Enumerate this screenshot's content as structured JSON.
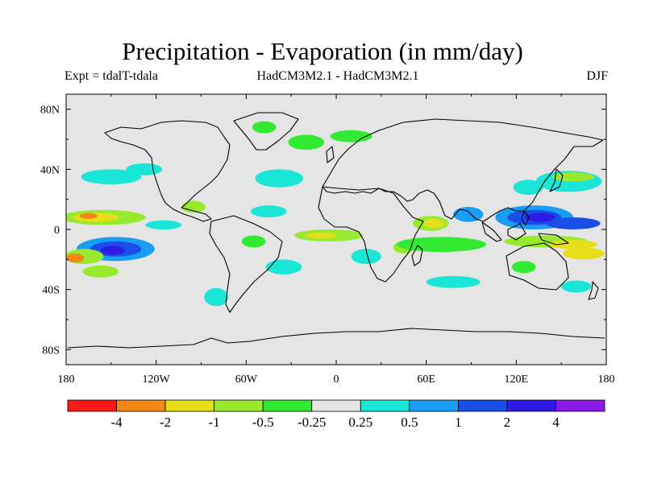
{
  "chart_data": {
    "type": "heatmap",
    "title": "Precipitation - Evaporation (in mm/day)",
    "subtitle_left": "Expt = tdalT-tdala",
    "subtitle_center": "HadCM3M2.1 - HadCM3M2.1",
    "subtitle_right": "DJF",
    "x_range": [
      -180,
      180
    ],
    "y_range": [
      -90,
      90
    ],
    "x_ticks": [
      {
        "value": -180,
        "label": "180"
      },
      {
        "value": -120,
        "label": "120W"
      },
      {
        "value": -60,
        "label": "60W"
      },
      {
        "value": 0,
        "label": "0"
      },
      {
        "value": 60,
        "label": "60E"
      },
      {
        "value": 120,
        "label": "120E"
      },
      {
        "value": 180,
        "label": "180"
      }
    ],
    "y_ticks": [
      {
        "value": 80,
        "label": "80N"
      },
      {
        "value": 40,
        "label": "40N"
      },
      {
        "value": 0,
        "label": "0"
      },
      {
        "value": -40,
        "label": "40S"
      },
      {
        "value": -80,
        "label": "80S"
      }
    ],
    "background_color": "#e5e5e5",
    "colorbar": {
      "colors": [
        "#ff1a1a",
        "#f58717",
        "#e6de1a",
        "#99ea2e",
        "#33ea33",
        "#e5e5e5",
        "#1ae6d8",
        "#1a9ef5",
        "#1a4ee8",
        "#2f1ae6",
        "#8a1ae8"
      ],
      "labels": [
        "-4",
        "-2",
        "-1",
        "-0.5",
        "-0.25",
        "0.25",
        "0.5",
        "1",
        "2",
        "4"
      ]
    },
    "field_regions": [
      {
        "name": "central-pacific-dry-band",
        "lon": -155,
        "lat": 8,
        "rlon": 28,
        "rlat": 5,
        "level": 3
      },
      {
        "name": "central-pacific-dry-core",
        "lon": -160,
        "lat": 8,
        "rlon": 15,
        "rlat": 3,
        "level": 2
      },
      {
        "name": "central-pacific-dry-red",
        "lon": -165,
        "lat": 9,
        "rlon": 6,
        "rlat": 2,
        "level": 1
      },
      {
        "name": "north-pacific-wet",
        "lon": -150,
        "lat": 35,
        "rlon": 20,
        "rlat": 5,
        "level": 6
      },
      {
        "name": "north-pacific-wet-2",
        "lon": -128,
        "lat": 40,
        "rlon": 12,
        "rlat": 4,
        "level": 6
      },
      {
        "name": "south-pacific-wet-broad",
        "lon": -147,
        "lat": -13,
        "rlon": 26,
        "rlat": 8,
        "level": 7
      },
      {
        "name": "south-pacific-wet-mid",
        "lon": -147,
        "lat": -13,
        "rlon": 17,
        "rlat": 5,
        "level": 8
      },
      {
        "name": "south-pacific-wet-core",
        "lon": -149,
        "lat": -14,
        "rlon": 8,
        "rlat": 3,
        "level": 9
      },
      {
        "name": "sw-pacific-dry",
        "lon": -168,
        "lat": -18,
        "rlon": 13,
        "rlat": 5,
        "level": 3
      },
      {
        "name": "sw-pacific-dry-core",
        "lon": -174,
        "lat": -19,
        "rlon": 6,
        "rlat": 3,
        "level": 1
      },
      {
        "name": "se-pacific-dry",
        "lon": -157,
        "lat": -28,
        "rlon": 12,
        "rlat": 4,
        "level": 3
      },
      {
        "name": "east-pacific-wet",
        "lon": -115,
        "lat": 3,
        "rlon": 12,
        "rlat": 3,
        "level": 6
      },
      {
        "name": "mexico-dry",
        "lon": -95,
        "lat": 15,
        "rlon": 8,
        "rlat": 4,
        "level": 3
      },
      {
        "name": "amazon-dry",
        "lon": -55,
        "lat": -8,
        "rlon": 8,
        "rlat": 4,
        "level": 4
      },
      {
        "name": "south-atlantic-wet",
        "lon": -35,
        "lat": -25,
        "rlon": 12,
        "rlat": 5,
        "level": 6
      },
      {
        "name": "north-atlantic-wet",
        "lon": -38,
        "lat": 34,
        "rlon": 16,
        "rlat": 6,
        "level": 6
      },
      {
        "name": "north-atlantic-wet-2",
        "lon": -45,
        "lat": 12,
        "rlon": 12,
        "rlat": 4,
        "level": 6
      },
      {
        "name": "north-atlantic-dry",
        "lon": -20,
        "lat": 58,
        "rlon": 12,
        "rlat": 5,
        "level": 4
      },
      {
        "name": "nordic-dry",
        "lon": 10,
        "lat": 62,
        "rlon": 14,
        "rlat": 4,
        "level": 4
      },
      {
        "name": "greenland-dry",
        "lon": -48,
        "lat": 68,
        "rlon": 8,
        "rlat": 4,
        "level": 4
      },
      {
        "name": "atlantic-itcz-dry",
        "lon": -5,
        "lat": -4,
        "rlon": 23,
        "rlat": 4,
        "level": 3
      },
      {
        "name": "atlantic-itcz-dry-core",
        "lon": -10,
        "lat": -4,
        "rlon": 10,
        "rlat": 2,
        "level": 2
      },
      {
        "name": "africa-wet",
        "lon": 20,
        "lat": -18,
        "rlon": 10,
        "rlat": 5,
        "level": 6
      },
      {
        "name": "madagascar-dry",
        "lon": 45,
        "lat": -12,
        "rlon": 7,
        "rlat": 4,
        "level": 3
      },
      {
        "name": "indian-ocean-dry-band",
        "lon": 70,
        "lat": -10,
        "rlon": 30,
        "rlat": 5,
        "level": 4
      },
      {
        "name": "arabian-sea-dry",
        "lon": 63,
        "lat": 4,
        "rlon": 12,
        "rlat": 5,
        "level": 3
      },
      {
        "name": "arabian-sea-dry-core",
        "lon": 65,
        "lat": 4,
        "rlon": 7,
        "rlat": 3,
        "level": 2
      },
      {
        "name": "bay-of-bengal-wet",
        "lon": 88,
        "lat": 10,
        "rlon": 10,
        "rlat": 5,
        "level": 7
      },
      {
        "name": "warm-pool-wet-broad",
        "lon": 132,
        "lat": 8,
        "rlon": 26,
        "rlat": 8,
        "level": 7
      },
      {
        "name": "warm-pool-wet-mid",
        "lon": 132,
        "lat": 8,
        "rlon": 18,
        "rlat": 5,
        "level": 8
      },
      {
        "name": "warm-pool-wet-core",
        "lon": 136,
        "lat": 8,
        "rlon": 10,
        "rlat": 3,
        "level": 9
      },
      {
        "name": "west-pacific-wet-east",
        "lon": 158,
        "lat": 4,
        "rlon": 18,
        "rlat": 4,
        "level": 8
      },
      {
        "name": "maritime-dry-band",
        "lon": 140,
        "lat": -8,
        "rlon": 28,
        "rlat": 4,
        "level": 3
      },
      {
        "name": "maritime-dry-core",
        "lon": 158,
        "lat": -10,
        "rlon": 16,
        "rlat": 3,
        "level": 2
      },
      {
        "name": "spcz-dry",
        "lon": 165,
        "lat": -16,
        "rlon": 14,
        "rlat": 4,
        "level": 2
      },
      {
        "name": "north-west-pacific-wet",
        "lon": 155,
        "lat": 32,
        "rlon": 22,
        "rlat": 7,
        "level": 6
      },
      {
        "name": "north-west-pacific-dry",
        "lon": 158,
        "lat": 35,
        "rlon": 14,
        "rlat": 3,
        "level": 3
      },
      {
        "name": "east-asia-wet",
        "lon": 128,
        "lat": 28,
        "rlon": 10,
        "rlat": 5,
        "level": 6
      },
      {
        "name": "south-indian-wet",
        "lon": 78,
        "lat": -35,
        "rlon": 18,
        "rlat": 4,
        "level": 6
      },
      {
        "name": "southern-ocean-wet",
        "lon": -80,
        "lat": -45,
        "rlon": 8,
        "rlat": 6,
        "level": 6
      },
      {
        "name": "tasman-wet",
        "lon": 160,
        "lat": -38,
        "rlon": 10,
        "rlat": 4,
        "level": 6
      },
      {
        "name": "australia-dry",
        "lon": 125,
        "lat": -25,
        "rlon": 8,
        "rlat": 4,
        "level": 4
      }
    ]
  }
}
